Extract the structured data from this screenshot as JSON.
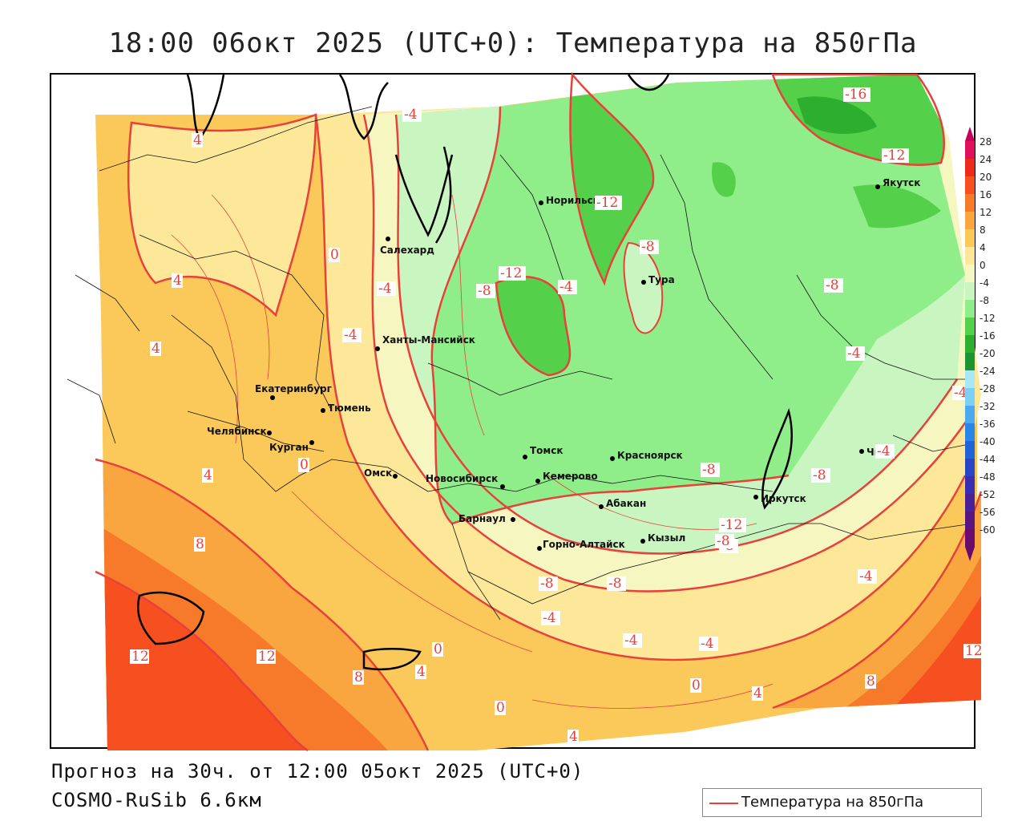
{
  "title": "18:00 06окт 2025 (UTC+0): Температура на 850гПа",
  "forecast_info": "Прогноз на 30ч. от 12:00 05окт 2025 (UTC+0)",
  "model": "COSMO-RuSib 6.6км",
  "legend": {
    "label": "Температура на 850гПа",
    "line_color": "#e8403a"
  },
  "colorbar": {
    "ticks": [
      "28",
      "24",
      "20",
      "16",
      "12",
      "8",
      "4",
      "0",
      "-4",
      "-8",
      "-12",
      "-16",
      "-20",
      "-24",
      "-28",
      "-32",
      "-36",
      "-40",
      "-44",
      "-48",
      "-52",
      "-56",
      "-60"
    ],
    "colors": [
      "#c8005a",
      "#e0105a",
      "#f02a1a",
      "#f65020",
      "#f77a2a",
      "#f9a640",
      "#fbc95a",
      "#fde89a",
      "#f6f6c0",
      "#c8f5c0",
      "#90ee8a",
      "#55d04a",
      "#2eae2e",
      "#1c9430",
      "#a8e8f6",
      "#7cd0f6",
      "#4ea8f0",
      "#2a86e6",
      "#1e64d8",
      "#2846c4",
      "#3a2eb0",
      "#4a2098",
      "#5a1480",
      "#6a0a6a"
    ]
  },
  "cities": [
    {
      "name": "Салехард"
    },
    {
      "name": "Норильск"
    },
    {
      "name": "Якутск"
    },
    {
      "name": "Тура"
    },
    {
      "name": "Ханты-Мансийск"
    },
    {
      "name": "Екатеринбург"
    },
    {
      "name": "Тюмень"
    },
    {
      "name": "Челябинск"
    },
    {
      "name": "Курган"
    },
    {
      "name": "Омск"
    },
    {
      "name": "Новосибирск"
    },
    {
      "name": "Томск"
    },
    {
      "name": "Кемерово"
    },
    {
      "name": "Красноярск"
    },
    {
      "name": "Абакан"
    },
    {
      "name": "Барнаул"
    },
    {
      "name": "Горно-Алтайск"
    },
    {
      "name": "Кызыл"
    },
    {
      "name": "Иркутск"
    },
    {
      "name": "Чита"
    }
  ],
  "isotherm_labels": [
    "-4",
    "4",
    "0",
    "-4",
    "-4",
    "4",
    "4",
    "4",
    "-4",
    "-8",
    "-12",
    "-8",
    "-12",
    "-16",
    "-12",
    "-8",
    "-4",
    "-4",
    "-8",
    "-8",
    "-4",
    "-12",
    "-8",
    "-8",
    "-8",
    "-4",
    "-4",
    "-4",
    "0",
    "8",
    "12",
    "12",
    "8",
    "4",
    "0",
    "0",
    "4",
    "0",
    "4",
    "8",
    "12",
    "-8",
    "-4",
    "-4"
  ]
}
